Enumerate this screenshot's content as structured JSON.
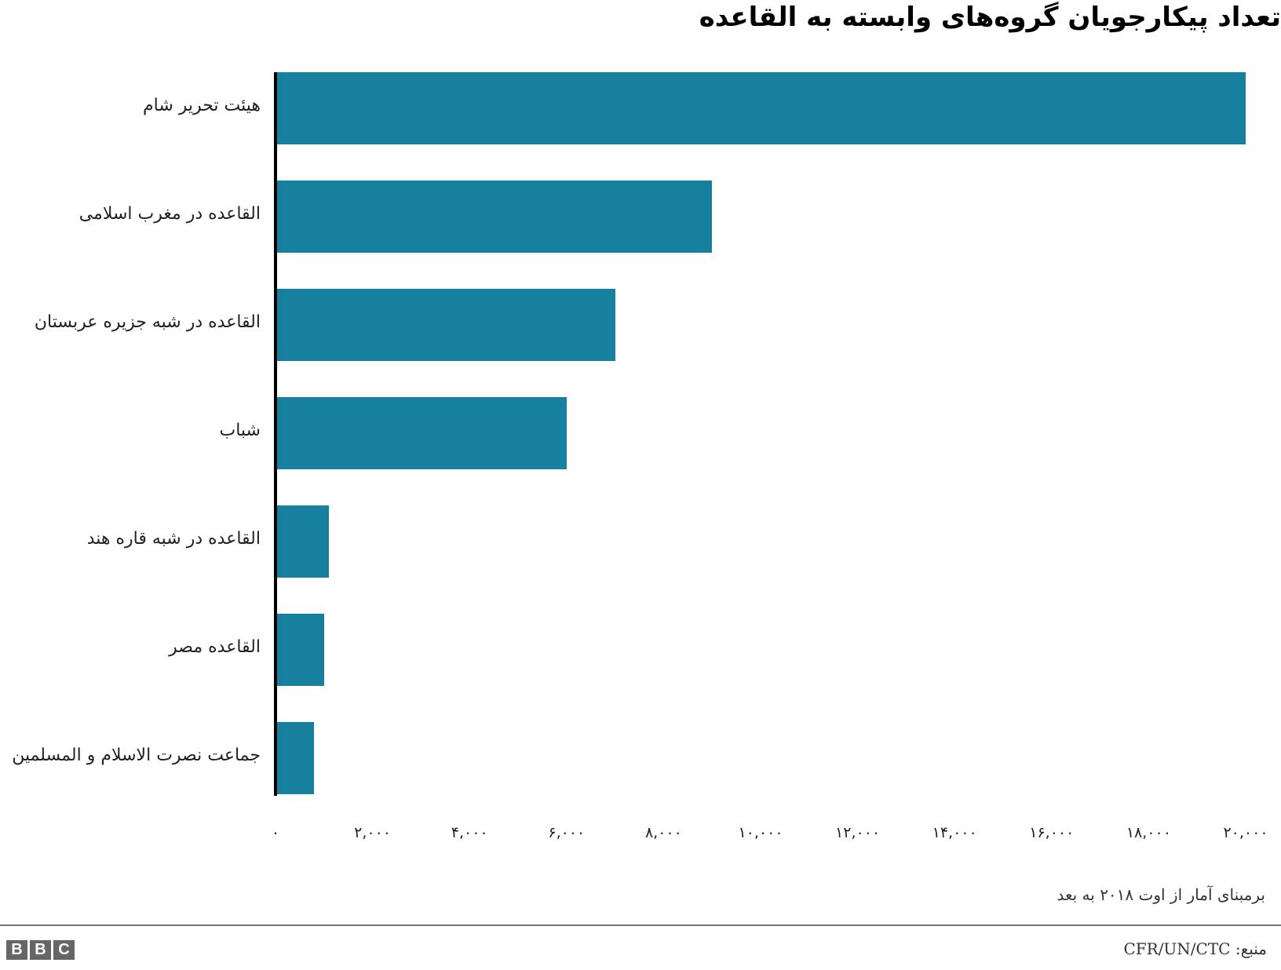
{
  "title": "تعداد پیکارجویان گروه‌های وابسته به القاعده",
  "chart_data": {
    "type": "bar",
    "orientation": "horizontal",
    "title": "تعداد پیکارجویان گروه‌های وابسته به القاعده",
    "categories": [
      "هیئت تحریر شام",
      "القاعده در مغرب اسلامی",
      "القاعده در شبه جزیره عربستان",
      "شباب",
      "القاعده در شبه قاره هند",
      "القاعده مصر",
      "جماعت نصرت الاسلام و المسلمین"
    ],
    "values": [
      20000,
      9000,
      7000,
      6000,
      1100,
      1000,
      800
    ],
    "xlabel": "",
    "ylabel": "",
    "xlim": [
      0,
      20000
    ],
    "xticks": [
      0,
      2000,
      4000,
      6000,
      8000,
      10000,
      12000,
      14000,
      16000,
      18000,
      20000
    ],
    "xtick_labels": [
      "۰",
      "۲,۰۰۰",
      "۴,۰۰۰",
      "۶,۰۰۰",
      "۸,۰۰۰",
      "۱۰,۰۰۰",
      "۱۲,۰۰۰",
      "۱۴,۰۰۰",
      "۱۶,۰۰۰",
      "۱۸,۰۰۰",
      "۲۰,۰۰۰"
    ],
    "grid": false,
    "legend": null,
    "bar_color": "#17809f"
  },
  "footer": {
    "note": "برمبنای آمار از اوت ۲۰۱۸ به بعد",
    "source": "منبع: CFR/UN/CTC",
    "logo": [
      "B",
      "B",
      "C"
    ]
  }
}
